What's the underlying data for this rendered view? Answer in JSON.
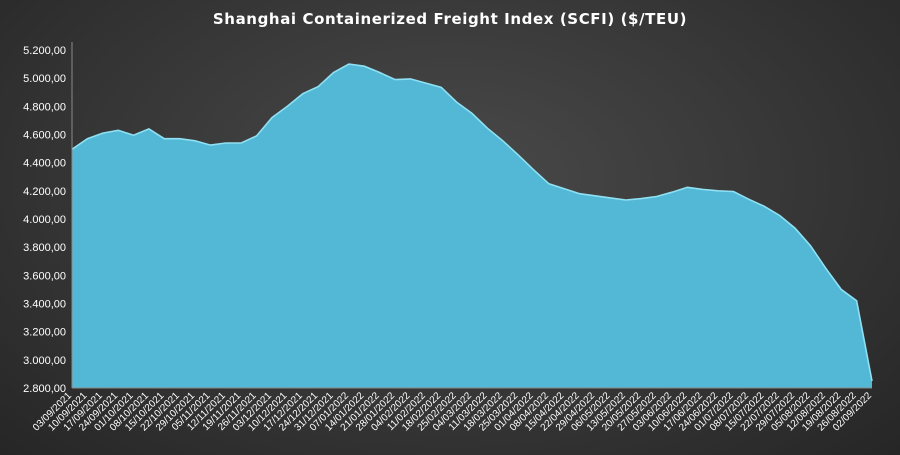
{
  "chart_data": {
    "type": "area",
    "title": "Shanghai Containerized Freight Index  (SCFI) ($/TEU)",
    "xlabel": "",
    "ylabel": "",
    "ylim": [
      2800,
      5200
    ],
    "yticks": [
      "5.200,00",
      "5.000,00",
      "4.800,00",
      "4.600,00",
      "4.400,00",
      "4.200,00",
      "4.000,00",
      "3.800,00",
      "3.600,00",
      "3.400,00",
      "3.200,00",
      "3.000,00",
      "2.800,00"
    ],
    "ytick_values": [
      5200,
      5000,
      4800,
      4600,
      4400,
      4200,
      4000,
      3800,
      3600,
      3400,
      3200,
      3000,
      2800
    ],
    "grid": false,
    "legend": "none",
    "fill_color": "#53b8d6",
    "line_color": "#8fe0f2",
    "x": [
      "03/09/2021",
      "10/09/2021",
      "17/09/2021",
      "24/09/2021",
      "01/10/2021",
      "08/10/2021",
      "15/10/2021",
      "22/10/2021",
      "29/10/2021",
      "05/11/2021",
      "12/11/2021",
      "19/11/2021",
      "26/11/2021",
      "03/12/2021",
      "10/12/2021",
      "17/12/2021",
      "24/12/2021",
      "31/12/2021",
      "07/01/2022",
      "14/01/2022",
      "21/01/2022",
      "28/01/2022",
      "04/02/2022",
      "11/02/2022",
      "18/02/2022",
      "25/02/2022",
      "04/03/2022",
      "11/03/2022",
      "18/03/2022",
      "25/03/2022",
      "01/04/2022",
      "08/04/2022",
      "15/04/2022",
      "22/04/2022",
      "29/04/2022",
      "06/05/2022",
      "13/05/2022",
      "20/05/2022",
      "27/05/2022",
      "03/06/2022",
      "10/06/2022",
      "17/06/2022",
      "24/06/2022",
      "01/07/2022",
      "08/07/2022",
      "15/07/2022",
      "22/07/2022",
      "29/07/2022",
      "05/08/2022",
      "12/08/2022",
      "19/08/2022",
      "26/08/2022",
      "02/09/2022"
    ],
    "values": [
      4495,
      4570,
      4610,
      4630,
      4595,
      4640,
      4570,
      4570,
      4555,
      4525,
      4540,
      4540,
      4590,
      4720,
      4800,
      4890,
      4940,
      5040,
      5100,
      5085,
      5040,
      4990,
      4995,
      4965,
      4935,
      4830,
      4750,
      4645,
      4555,
      4455,
      4350,
      4250,
      4215,
      4180,
      4165,
      4150,
      4135,
      4145,
      4160,
      4190,
      4225,
      4210,
      4200,
      4195,
      4140,
      4090,
      4025,
      3935,
      3810,
      3650,
      3500,
      3420,
      2850
    ]
  }
}
